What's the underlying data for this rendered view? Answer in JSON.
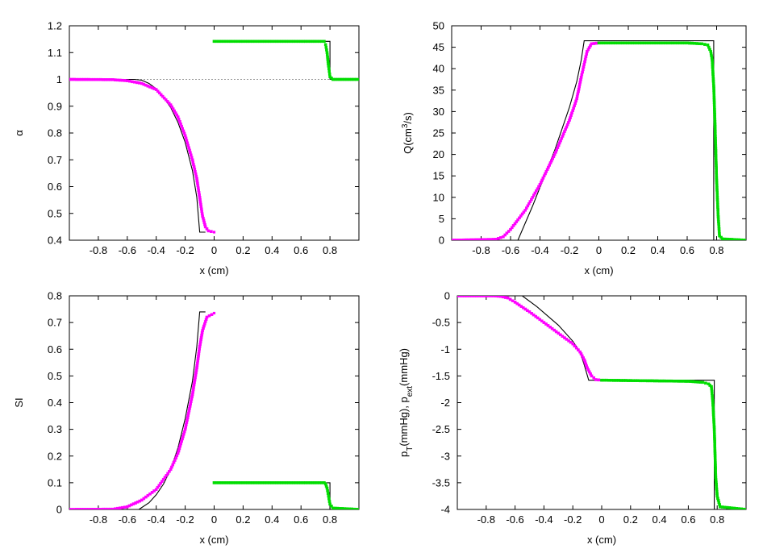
{
  "chart_data": [
    {
      "type": "line",
      "xlabel": "x (cm)",
      "ylabel": "α",
      "xlim": [
        -1,
        1
      ],
      "ylim": [
        0.4,
        1.2
      ],
      "x_ticks": [
        "-0.8",
        "-0.6",
        "-0.4",
        "-0.2",
        "0",
        "0.2",
        "0.4",
        "0.6",
        "0.8"
      ],
      "y_ticks": [
        "0.4",
        "0.5",
        "0.6",
        "0.7",
        "0.8",
        "0.9",
        "1",
        "1.1",
        "1.2"
      ],
      "reference_line": {
        "y": 1,
        "color": "#999999",
        "style": "dotted"
      },
      "series": [
        {
          "color": "#000000",
          "style": "line",
          "points": [
            [
              -1,
              1
            ],
            [
              -0.55,
              1
            ],
            [
              -0.5,
              0.997
            ],
            [
              -0.45,
              0.985
            ],
            [
              -0.4,
              0.965
            ],
            [
              -0.35,
              0.935
            ],
            [
              -0.3,
              0.895
            ],
            [
              -0.25,
              0.84
            ],
            [
              -0.2,
              0.765
            ],
            [
              -0.15,
              0.66
            ],
            [
              -0.12,
              0.56
            ],
            [
              -0.1,
              0.43
            ],
            [
              -0.06,
              0.43
            ]
          ]
        },
        {
          "color": "#000000",
          "style": "line",
          "points": [
            [
              0.76,
              1.142
            ],
            [
              0.8,
              1.142
            ],
            [
              0.8,
              1
            ],
            [
              1,
              1
            ]
          ]
        },
        {
          "color": "#ff00ff",
          "style": "markers",
          "points": [
            [
              -1,
              1
            ],
            [
              -0.7,
              0.999
            ],
            [
              -0.6,
              0.995
            ],
            [
              -0.5,
              0.985
            ],
            [
              -0.4,
              0.962
            ],
            [
              -0.3,
              0.905
            ],
            [
              -0.25,
              0.86
            ],
            [
              -0.2,
              0.79
            ],
            [
              -0.15,
              0.7
            ],
            [
              -0.12,
              0.63
            ],
            [
              -0.1,
              0.56
            ],
            [
              -0.08,
              0.49
            ],
            [
              -0.06,
              0.45
            ],
            [
              -0.04,
              0.435
            ],
            [
              0,
              0.43
            ]
          ]
        },
        {
          "color": "#00dd00",
          "style": "markers",
          "points": [
            [
              0,
              1.142
            ],
            [
              0.6,
              1.142
            ],
            [
              0.76,
              1.142
            ],
            [
              0.77,
              1.13
            ],
            [
              0.78,
              1.1
            ],
            [
              0.79,
              1.05
            ],
            [
              0.8,
              1.01
            ],
            [
              0.82,
              1
            ],
            [
              1,
              1
            ]
          ]
        }
      ]
    },
    {
      "type": "line",
      "xlabel": "x (cm)",
      "ylabel": "Q(cm³/s)",
      "xlim": [
        -1,
        1
      ],
      "ylim": [
        0,
        50
      ],
      "x_ticks": [
        "-0.8",
        "-0.6",
        "-0.4",
        "-0.2",
        "0",
        "0.2",
        "0.4",
        "0.6",
        "0.8"
      ],
      "y_ticks": [
        "0",
        "5",
        "10",
        "15",
        "20",
        "25",
        "30",
        "35",
        "40",
        "45",
        "50"
      ],
      "series": [
        {
          "color": "#000000",
          "style": "line",
          "points": [
            [
              -1,
              0
            ],
            [
              -0.55,
              0
            ],
            [
              -0.45,
              8
            ],
            [
              -0.3,
              21
            ],
            [
              -0.2,
              31
            ],
            [
              -0.15,
              37
            ],
            [
              -0.12,
              42
            ],
            [
              -0.1,
              46.5
            ],
            [
              0.78,
              46.5
            ],
            [
              0.78,
              0
            ],
            [
              1,
              0
            ]
          ]
        },
        {
          "color": "#ff00ff",
          "style": "markers",
          "points": [
            [
              -1,
              0
            ],
            [
              -0.7,
              0.2
            ],
            [
              -0.65,
              0.8
            ],
            [
              -0.6,
              2.5
            ],
            [
              -0.5,
              7
            ],
            [
              -0.4,
              13
            ],
            [
              -0.3,
              20
            ],
            [
              -0.2,
              28
            ],
            [
              -0.15,
              33
            ],
            [
              -0.12,
              38
            ],
            [
              -0.1,
              41
            ],
            [
              -0.08,
              44
            ],
            [
              -0.05,
              45.8
            ],
            [
              0,
              46
            ]
          ]
        },
        {
          "color": "#00dd00",
          "style": "markers",
          "points": [
            [
              0,
              46
            ],
            [
              0.6,
              46
            ],
            [
              0.7,
              45.8
            ],
            [
              0.74,
              45.5
            ],
            [
              0.76,
              44
            ],
            [
              0.77,
              42
            ],
            [
              0.78,
              36
            ],
            [
              0.79,
              26
            ],
            [
              0.8,
              14
            ],
            [
              0.81,
              6
            ],
            [
              0.82,
              1
            ],
            [
              0.84,
              0.3
            ],
            [
              1,
              0
            ]
          ]
        }
      ]
    },
    {
      "type": "line",
      "xlabel": "x (cm)",
      "ylabel": "SI",
      "xlim": [
        -1,
        1
      ],
      "ylim": [
        0,
        0.8
      ],
      "x_ticks": [
        "-0.8",
        "-0.6",
        "-0.4",
        "-0.2",
        "0",
        "0.2",
        "0.4",
        "0.6",
        "0.8"
      ],
      "y_ticks": [
        "0",
        "0.1",
        "0.2",
        "0.3",
        "0.4",
        "0.5",
        "0.6",
        "0.7",
        "0.8"
      ],
      "series": [
        {
          "color": "#000000",
          "style": "line",
          "points": [
            [
              -1,
              0
            ],
            [
              -0.52,
              0
            ],
            [
              -0.45,
              0.025
            ],
            [
              -0.4,
              0.055
            ],
            [
              -0.35,
              0.095
            ],
            [
              -0.3,
              0.15
            ],
            [
              -0.25,
              0.23
            ],
            [
              -0.2,
              0.34
            ],
            [
              -0.15,
              0.48
            ],
            [
              -0.12,
              0.61
            ],
            [
              -0.1,
              0.74
            ],
            [
              -0.06,
              0.74
            ]
          ]
        },
        {
          "color": "#000000",
          "style": "line",
          "points": [
            [
              0.75,
              0.1
            ],
            [
              0.8,
              0.1
            ],
            [
              0.8,
              0
            ],
            [
              1,
              0
            ]
          ]
        },
        {
          "color": "#ff00ff",
          "style": "markers",
          "points": [
            [
              -1,
              0
            ],
            [
              -0.7,
              0.001
            ],
            [
              -0.6,
              0.01
            ],
            [
              -0.5,
              0.035
            ],
            [
              -0.4,
              0.075
            ],
            [
              -0.3,
              0.15
            ],
            [
              -0.25,
              0.21
            ],
            [
              -0.2,
              0.3
            ],
            [
              -0.15,
              0.43
            ],
            [
              -0.12,
              0.53
            ],
            [
              -0.1,
              0.61
            ],
            [
              -0.08,
              0.67
            ],
            [
              -0.05,
              0.72
            ],
            [
              0,
              0.735
            ]
          ]
        },
        {
          "color": "#00dd00",
          "style": "markers",
          "points": [
            [
              0,
              0.1
            ],
            [
              0.6,
              0.1
            ],
            [
              0.76,
              0.1
            ],
            [
              0.77,
              0.095
            ],
            [
              0.78,
              0.08
            ],
            [
              0.79,
              0.05
            ],
            [
              0.8,
              0.02
            ],
            [
              0.82,
              0.005
            ],
            [
              1,
              0
            ]
          ]
        }
      ]
    },
    {
      "type": "line",
      "xlabel": "x (cm)",
      "ylabel": "pT(mmHg), pext(mmHg)",
      "ylabel_parts": [
        "p",
        "T",
        "(mmHg), p",
        "ext",
        "(mmHg)"
      ],
      "xlim": [
        -1,
        1
      ],
      "ylim": [
        -4,
        0
      ],
      "x_ticks": [
        "-0.8",
        "-0.6",
        "-0.4",
        "-0.2",
        "0",
        "0.2",
        "0.4",
        "0.6",
        "0.8"
      ],
      "y_ticks": [
        "-4",
        "-3.5",
        "-3",
        "-2.5",
        "-2",
        "-1.5",
        "-1",
        "-0.5",
        "0"
      ],
      "series": [
        {
          "color": "#000000",
          "style": "line",
          "points": [
            [
              -1,
              0
            ],
            [
              -0.55,
              0
            ],
            [
              -0.45,
              -0.2
            ],
            [
              -0.3,
              -0.55
            ],
            [
              -0.2,
              -0.85
            ],
            [
              -0.15,
              -1.05
            ],
            [
              -0.12,
              -1.3
            ],
            [
              -0.09,
              -1.58
            ],
            [
              0.78,
              -1.58
            ],
            [
              0.78,
              -4
            ],
            [
              1,
              -4
            ]
          ]
        },
        {
          "color": "#ff00ff",
          "style": "markers",
          "points": [
            [
              -1,
              0
            ],
            [
              -0.75,
              0
            ],
            [
              -0.7,
              -0.01
            ],
            [
              -0.65,
              -0.04
            ],
            [
              -0.6,
              -0.12
            ],
            [
              -0.5,
              -0.3
            ],
            [
              -0.4,
              -0.5
            ],
            [
              -0.3,
              -0.7
            ],
            [
              -0.2,
              -0.9
            ],
            [
              -0.15,
              -1.05
            ],
            [
              -0.12,
              -1.2
            ],
            [
              -0.1,
              -1.35
            ],
            [
              -0.07,
              -1.5
            ],
            [
              -0.04,
              -1.57
            ],
            [
              0,
              -1.58
            ]
          ]
        },
        {
          "color": "#00dd00",
          "style": "markers",
          "points": [
            [
              0,
              -1.58
            ],
            [
              0.6,
              -1.6
            ],
            [
              0.7,
              -1.62
            ],
            [
              0.74,
              -1.65
            ],
            [
              0.76,
              -1.7
            ],
            [
              0.77,
              -2
            ],
            [
              0.78,
              -2.5
            ],
            [
              0.79,
              -3.4
            ],
            [
              0.8,
              -3.75
            ],
            [
              0.82,
              -3.95
            ],
            [
              1,
              -4
            ]
          ]
        }
      ]
    }
  ]
}
